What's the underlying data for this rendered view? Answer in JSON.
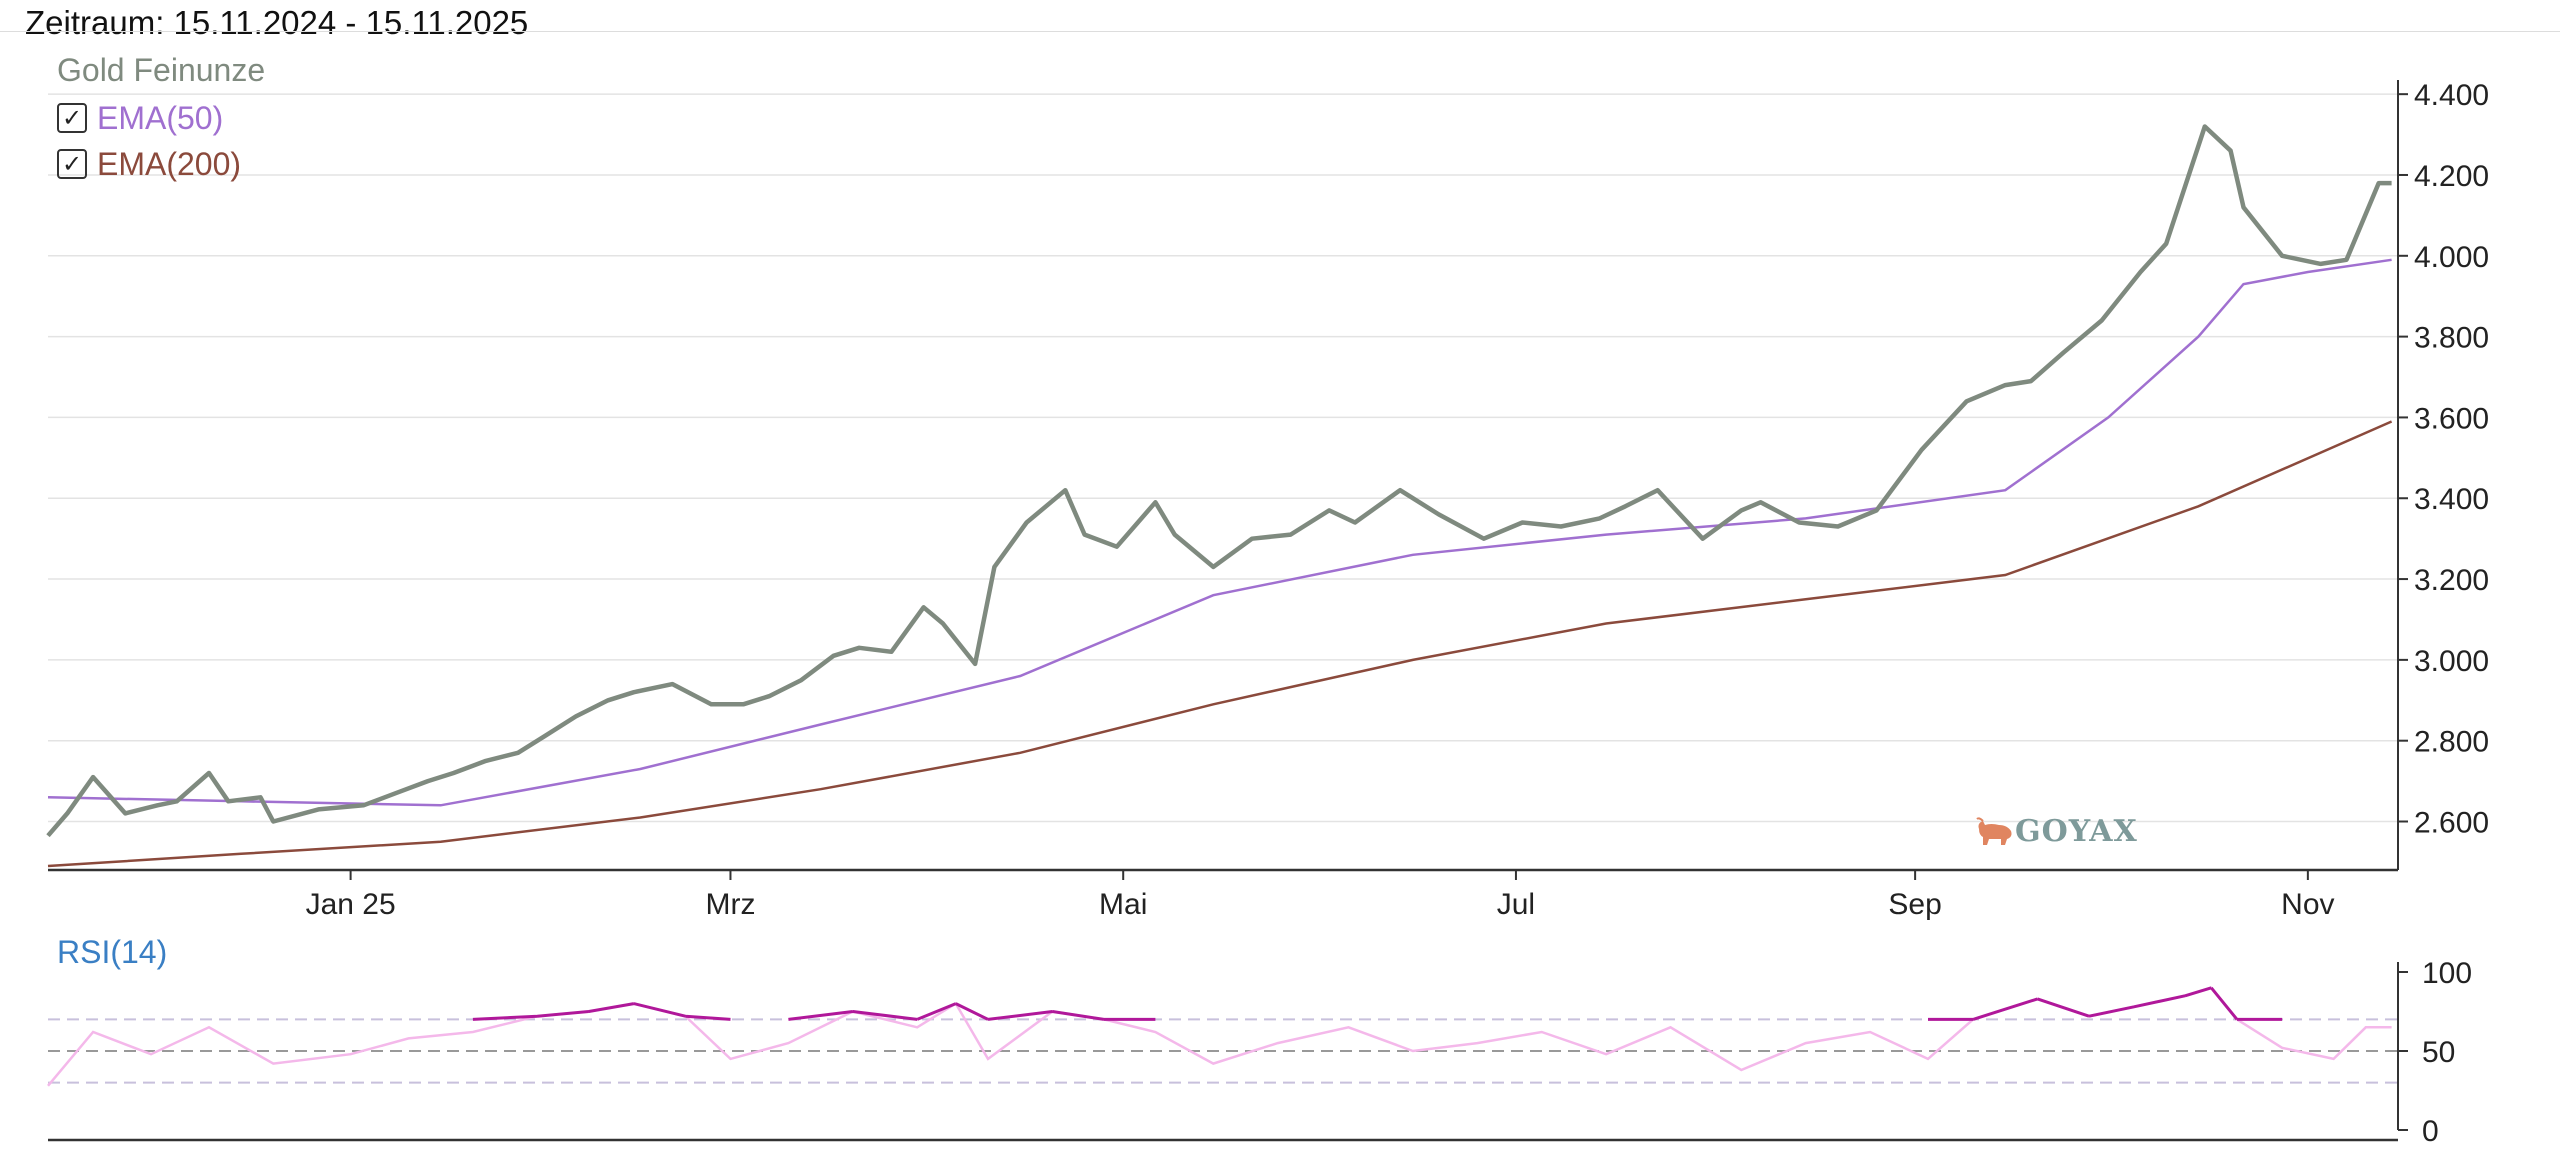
{
  "header": {
    "title": "Zeitraum: 15.11.2024 - 15.11.2025"
  },
  "legend": {
    "instrument": "Gold Feinunze",
    "items": [
      {
        "label": "EMA(50)",
        "checked": true,
        "color": "#a070d0"
      },
      {
        "label": "EMA(200)",
        "checked": true,
        "color": "#8b4a3c"
      }
    ]
  },
  "rsi_panel": {
    "title": "RSI(14)"
  },
  "logo": {
    "text": "GOYAX"
  },
  "colors": {
    "price": "#7f8a7f",
    "ema50": "#a070d0",
    "ema200": "#8b4a3c",
    "rsi_high": "#b0189a",
    "rsi_low": "#f4b8ea",
    "grid": "#e3e3e3",
    "axis": "#333333"
  },
  "chart_data": [
    {
      "type": "line",
      "x_labels": [
        "Jan 25",
        "Mrz",
        "Mai",
        "Jul",
        "Sep",
        "Nov"
      ],
      "x_range": [
        "2024-11-15",
        "2025-11-15"
      ],
      "ylim": [
        2480,
        4440
      ],
      "y_ticks": [
        "2.600",
        "2.800",
        "3.000",
        "3.200",
        "3.400",
        "3.600",
        "3.800",
        "4.000",
        "4.200",
        "4.400"
      ],
      "y_axis_side": "right",
      "grid": "horizontal",
      "series": [
        {
          "name": "Gold Feinunze",
          "x": [
            "2024-11-15",
            "2024-11-18",
            "2024-11-22",
            "2024-11-27",
            "2024-12-02",
            "2024-12-05",
            "2024-12-10",
            "2024-12-13",
            "2024-12-18",
            "2024-12-20",
            "2024-12-27",
            "2025-01-03",
            "2025-01-08",
            "2025-01-13",
            "2025-01-17",
            "2025-01-22",
            "2025-01-27",
            "2025-01-31",
            "2025-02-05",
            "2025-02-10",
            "2025-02-14",
            "2025-02-20",
            "2025-02-26",
            "2025-03-03",
            "2025-03-07",
            "2025-03-12",
            "2025-03-17",
            "2025-03-21",
            "2025-03-26",
            "2025-03-31",
            "2025-04-03",
            "2025-04-08",
            "2025-04-11",
            "2025-04-16",
            "2025-04-22",
            "2025-04-25",
            "2025-04-30",
            "2025-05-06",
            "2025-05-09",
            "2025-05-15",
            "2025-05-21",
            "2025-05-27",
            "2025-06-02",
            "2025-06-06",
            "2025-06-13",
            "2025-06-19",
            "2025-06-26",
            "2025-07-02",
            "2025-07-08",
            "2025-07-14",
            "2025-07-18",
            "2025-07-23",
            "2025-07-30",
            "2025-08-05",
            "2025-08-08",
            "2025-08-14",
            "2025-08-20",
            "2025-08-26",
            "2025-09-02",
            "2025-09-09",
            "2025-09-15",
            "2025-09-19",
            "2025-09-24",
            "2025-09-30",
            "2025-10-06",
            "2025-10-10",
            "2025-10-16",
            "2025-10-20",
            "2025-10-22",
            "2025-10-28",
            "2025-11-03",
            "2025-11-07",
            "2025-11-12",
            "2025-11-14"
          ],
          "values": [
            2565,
            2620,
            2710,
            2620,
            2640,
            2650,
            2720,
            2650,
            2660,
            2600,
            2630,
            2640,
            2670,
            2700,
            2720,
            2750,
            2770,
            2810,
            2860,
            2900,
            2920,
            2940,
            2890,
            2890,
            2910,
            2950,
            3010,
            3030,
            3020,
            3130,
            3090,
            2990,
            3230,
            3340,
            3420,
            3310,
            3280,
            3390,
            3310,
            3230,
            3300,
            3310,
            3370,
            3340,
            3420,
            3360,
            3300,
            3340,
            3330,
            3350,
            3380,
            3420,
            3300,
            3370,
            3390,
            3340,
            3330,
            3370,
            3520,
            3640,
            3680,
            3690,
            3760,
            3840,
            3960,
            4030,
            4320,
            4260,
            4120,
            4000,
            3980,
            3990,
            4180,
            4180
          ],
          "color": "#7f8a7f"
        },
        {
          "name": "EMA(50)",
          "x": [
            "2024-11-15",
            "2024-12-15",
            "2025-01-15",
            "2025-02-15",
            "2025-03-15",
            "2025-04-15",
            "2025-05-15",
            "2025-06-15",
            "2025-07-15",
            "2025-08-15",
            "2025-09-15",
            "2025-10-01",
            "2025-10-15",
            "2025-10-22",
            "2025-11-01",
            "2025-11-14"
          ],
          "values": [
            2660,
            2650,
            2640,
            2730,
            2840,
            2960,
            3160,
            3260,
            3310,
            3350,
            3420,
            3600,
            3800,
            3930,
            3960,
            3990
          ],
          "color": "#a070d0"
        },
        {
          "name": "EMA(200)",
          "x": [
            "2024-11-15",
            "2024-12-15",
            "2025-01-15",
            "2025-02-15",
            "2025-03-15",
            "2025-04-15",
            "2025-05-15",
            "2025-06-15",
            "2025-07-15",
            "2025-08-15",
            "2025-09-15",
            "2025-10-15",
            "2025-11-14"
          ],
          "values": [
            2490,
            2520,
            2550,
            2610,
            2680,
            2770,
            2890,
            3000,
            3090,
            3150,
            3210,
            3380,
            3590
          ],
          "color": "#8b4a3c"
        }
      ]
    },
    {
      "type": "line",
      "title": "RSI(14)",
      "x_range": [
        "2024-11-15",
        "2025-11-15"
      ],
      "ylim": [
        0,
        100
      ],
      "y_ticks": [
        "0",
        "50",
        "100"
      ],
      "reference_lines": [
        30,
        50,
        70
      ],
      "series": [
        {
          "name": "RSI(14)",
          "x": [
            "2024-11-15",
            "2024-11-22",
            "2024-12-01",
            "2024-12-10",
            "2024-12-20",
            "2025-01-01",
            "2025-01-10",
            "2025-01-20",
            "2025-01-30",
            "2025-02-07",
            "2025-02-14",
            "2025-02-22",
            "2025-03-01",
            "2025-03-10",
            "2025-03-20",
            "2025-03-30",
            "2025-04-05",
            "2025-04-10",
            "2025-04-20",
            "2025-04-28",
            "2025-05-06",
            "2025-05-15",
            "2025-05-25",
            "2025-06-05",
            "2025-06-15",
            "2025-06-25",
            "2025-07-05",
            "2025-07-15",
            "2025-07-25",
            "2025-08-05",
            "2025-08-15",
            "2025-08-25",
            "2025-09-03",
            "2025-09-10",
            "2025-09-20",
            "2025-09-28",
            "2025-10-05",
            "2025-10-13",
            "2025-10-17",
            "2025-10-21",
            "2025-10-28",
            "2025-11-05",
            "2025-11-10",
            "2025-11-14"
          ],
          "values": [
            28,
            62,
            48,
            65,
            42,
            48,
            58,
            62,
            72,
            75,
            80,
            72,
            45,
            55,
            75,
            65,
            80,
            45,
            75,
            70,
            62,
            42,
            55,
            65,
            50,
            55,
            62,
            48,
            65,
            38,
            55,
            62,
            45,
            70,
            83,
            72,
            78,
            85,
            90,
            70,
            52,
            45,
            65,
            65
          ]
        }
      ]
    }
  ]
}
